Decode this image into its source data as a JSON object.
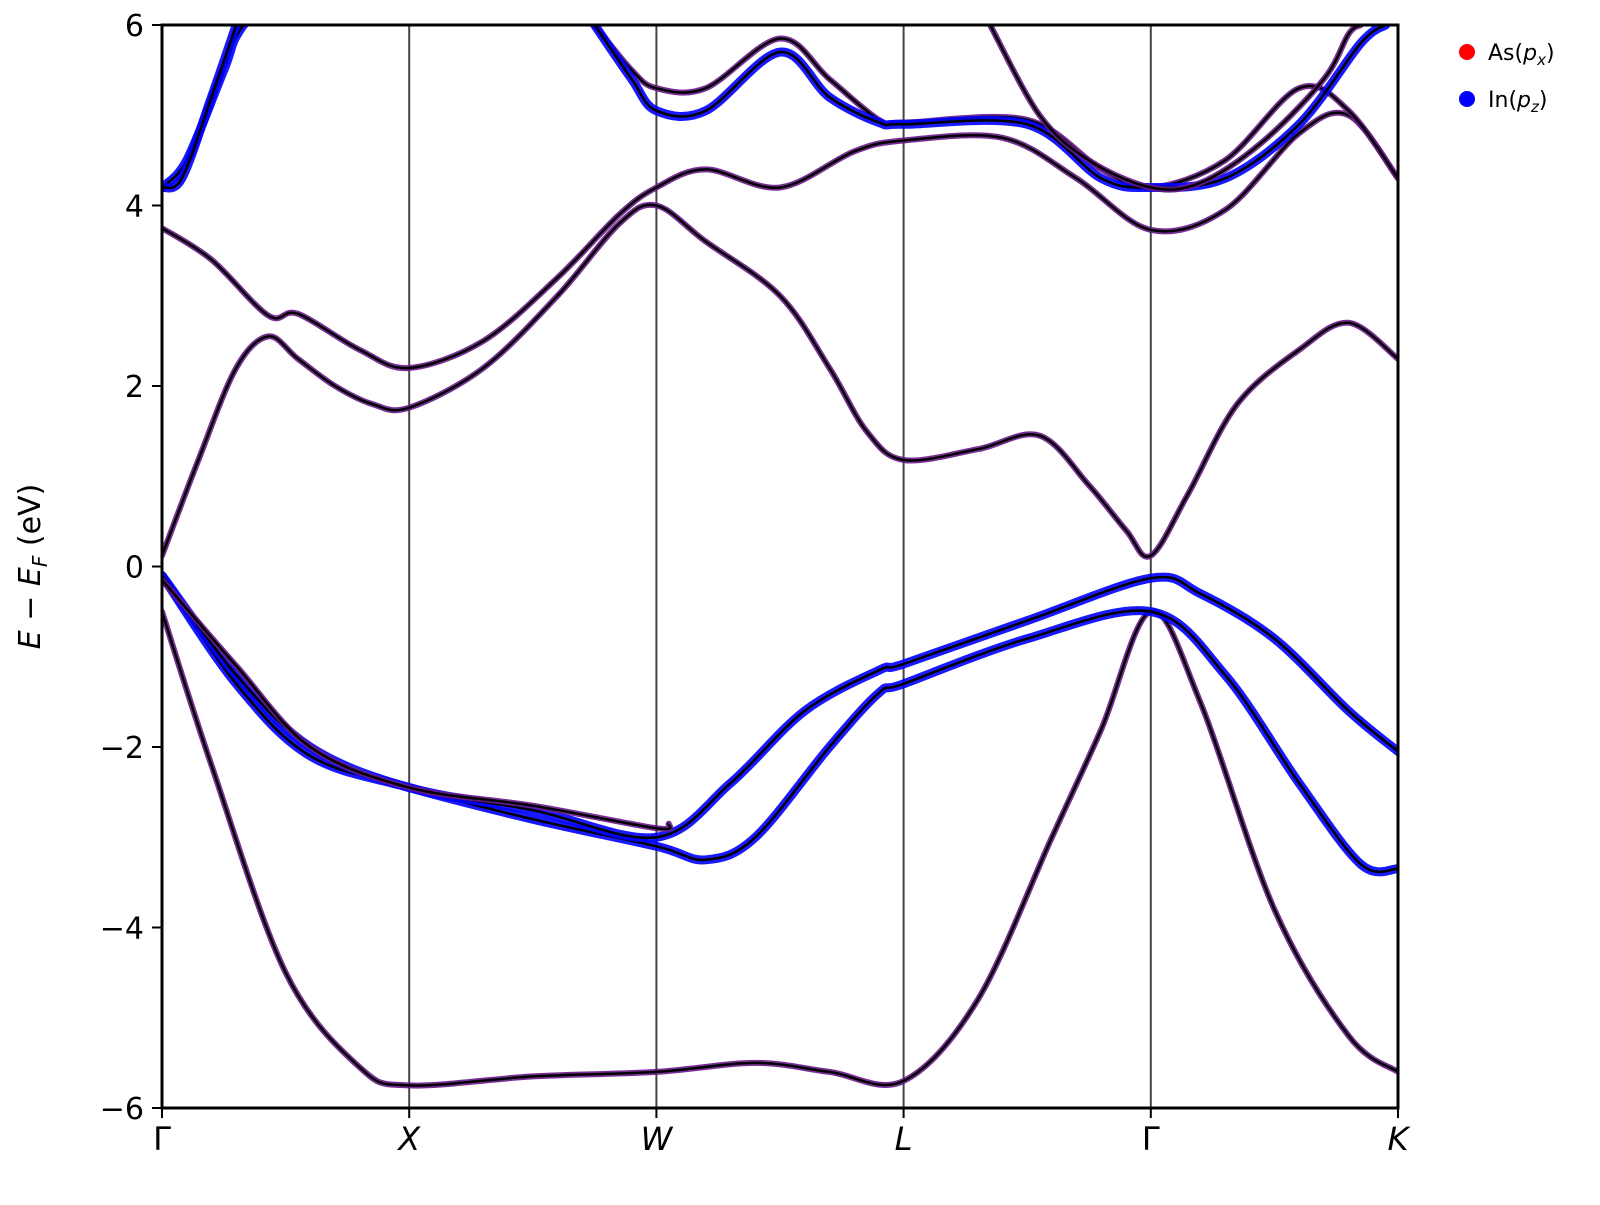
{
  "chart_data": {
    "type": "line",
    "title": "",
    "xlabel": "",
    "ylabel": "E − E_F (eV)",
    "ylabel_parts": {
      "main": "E − E",
      "sub": "F",
      "unit": " (eV)"
    },
    "ylim": [
      -6,
      6
    ],
    "yticks": [
      -6,
      -4,
      -2,
      0,
      2,
      4,
      6
    ],
    "ytick_labels": [
      "−6",
      "−4",
      "−2",
      "0",
      "2",
      "4",
      "6"
    ],
    "kpath": [
      {
        "label": "Γ",
        "x": 0,
        "italic": false
      },
      {
        "label": "X",
        "x": 1,
        "italic": true
      },
      {
        "label": "W",
        "x": 2,
        "italic": true
      },
      {
        "label": "L",
        "x": 3,
        "italic": true
      },
      {
        "label": "Γ",
        "x": 4,
        "italic": false
      },
      {
        "label": "K",
        "x": 5,
        "italic": true
      }
    ],
    "xlim": [
      0,
      5
    ],
    "grid": "vertical lines at high-symmetry points",
    "legend_position": "upper right, outside plot",
    "legend": [
      {
        "name": "As",
        "sub": "x",
        "color": "#ff0000"
      },
      {
        "name": "In",
        "sub": "z",
        "color": "#0000ff"
      }
    ],
    "colors": {
      "band": "#000000",
      "as_px": "#ff0000",
      "in_pz": "#0000ff",
      "mixed": "#6a1a8a",
      "kline": "#444444"
    },
    "series": [
      {
        "name": "band 1",
        "projection": "mixed",
        "points": [
          [
            0,
            -0.5
          ],
          [
            0.2,
            -2.2
          ],
          [
            0.5,
            -4.5
          ],
          [
            0.8,
            -5.55
          ],
          [
            1,
            -5.75
          ],
          [
            1.5,
            -5.65
          ],
          [
            2,
            -5.6
          ],
          [
            2.4,
            -5.5
          ],
          [
            2.7,
            -5.6
          ],
          [
            3,
            -5.7
          ],
          [
            3.3,
            -4.8
          ],
          [
            3.6,
            -3.0
          ],
          [
            3.8,
            -1.8
          ],
          [
            4,
            -0.5
          ],
          [
            4.2,
            -1.5
          ],
          [
            4.5,
            -3.8
          ],
          [
            4.8,
            -5.2
          ],
          [
            5,
            -5.6
          ]
        ]
      },
      {
        "name": "band 2",
        "projection": "in",
        "points": [
          [
            0,
            -0.1
          ],
          [
            0.3,
            -1.3
          ],
          [
            0.6,
            -2.1
          ],
          [
            1,
            -2.45
          ],
          [
            1.5,
            -2.8
          ],
          [
            2,
            -3.1
          ],
          [
            2.2,
            -3.25
          ],
          [
            2.4,
            -3.0
          ],
          [
            2.7,
            -2.0
          ],
          [
            2.9,
            -1.4
          ],
          [
            3,
            -1.3
          ],
          [
            3.5,
            -0.8
          ],
          [
            4,
            -0.5
          ],
          [
            4.3,
            -1.2
          ],
          [
            4.6,
            -2.4
          ],
          [
            4.85,
            -3.3
          ],
          [
            5,
            -3.35
          ]
        ]
      },
      {
        "name": "band 3",
        "projection": "in",
        "points": [
          [
            0,
            -0.1
          ],
          [
            0.3,
            -1.2
          ],
          [
            0.6,
            -2.0
          ],
          [
            1,
            -2.45
          ],
          [
            1.5,
            -2.7
          ],
          [
            2,
            -3.0
          ],
          [
            2.3,
            -2.4
          ],
          [
            2.6,
            -1.6
          ],
          [
            2.9,
            -1.15
          ],
          [
            3,
            -1.08
          ],
          [
            3.5,
            -0.6
          ],
          [
            4,
            -0.13
          ],
          [
            4.2,
            -0.3
          ],
          [
            4.5,
            -0.8
          ],
          [
            4.8,
            -1.6
          ],
          [
            5,
            -2.05
          ]
        ]
      },
      {
        "name": "band 4",
        "projection": "mixed",
        "points": [
          [
            0,
            -0.15
          ],
          [
            0.3,
            -1.1
          ],
          [
            0.6,
            -2.0
          ],
          [
            1,
            -2.45
          ],
          [
            1.5,
            -2.65
          ],
          [
            2,
            -2.9
          ],
          [
            2.05,
            -2.85
          ]
        ]
      },
      {
        "name": "band 5",
        "projection": "mixed",
        "points": [
          [
            0,
            0.12
          ],
          [
            0.15,
            1.2
          ],
          [
            0.3,
            2.2
          ],
          [
            0.43,
            2.55
          ],
          [
            0.55,
            2.3
          ],
          [
            0.7,
            2.0
          ],
          [
            0.85,
            1.8
          ],
          [
            1,
            1.76
          ],
          [
            1.3,
            2.2
          ],
          [
            1.6,
            3.0
          ],
          [
            1.85,
            3.8
          ],
          [
            2,
            4.0
          ],
          [
            2.2,
            3.6
          ],
          [
            2.5,
            3.0
          ],
          [
            2.7,
            2.2
          ],
          [
            2.85,
            1.5
          ],
          [
            3,
            1.18
          ],
          [
            3.3,
            1.3
          ],
          [
            3.55,
            1.45
          ],
          [
            3.75,
            0.9
          ],
          [
            3.9,
            0.4
          ],
          [
            4,
            0.12
          ],
          [
            4.15,
            0.8
          ],
          [
            4.35,
            1.8
          ],
          [
            4.6,
            2.4
          ],
          [
            4.8,
            2.7
          ],
          [
            5,
            2.3
          ]
        ]
      },
      {
        "name": "band 6",
        "projection": "mixed",
        "points": [
          [
            0,
            3.75
          ],
          [
            0.2,
            3.4
          ],
          [
            0.43,
            2.78
          ],
          [
            0.55,
            2.8
          ],
          [
            0.8,
            2.4
          ],
          [
            1,
            2.2
          ],
          [
            1.3,
            2.5
          ],
          [
            1.6,
            3.2
          ],
          [
            1.85,
            3.9
          ],
          [
            2,
            4.2
          ],
          [
            2.2,
            4.4
          ],
          [
            2.5,
            4.2
          ],
          [
            2.8,
            4.6
          ],
          [
            3,
            4.72
          ],
          [
            3.4,
            4.75
          ],
          [
            3.7,
            4.3
          ],
          [
            4,
            3.73
          ],
          [
            4.3,
            3.95
          ],
          [
            4.6,
            4.8
          ],
          [
            4.8,
            5.0
          ],
          [
            5,
            4.3
          ]
        ]
      },
      {
        "name": "band 7",
        "projection": "in",
        "points": [
          [
            0,
            4.2
          ],
          [
            0.1,
            4.5
          ],
          [
            0.25,
            5.5
          ],
          [
            0.33,
            6.0
          ],
          [
            0.6,
            6.8
          ]
        ]
      },
      {
        "name": "band 8",
        "projection": "in",
        "points": [
          [
            0,
            4.2
          ],
          [
            0.08,
            4.3
          ],
          [
            0.2,
            5.2
          ],
          [
            0.3,
            6.0
          ]
        ]
      },
      {
        "name": "band 9",
        "projection": "mixed",
        "points": [
          [
            1.75,
            6.0
          ],
          [
            1.9,
            5.5
          ],
          [
            2,
            5.3
          ],
          [
            2.2,
            5.3
          ],
          [
            2.5,
            5.85
          ],
          [
            2.7,
            5.4
          ],
          [
            2.9,
            4.95
          ],
          [
            3,
            4.92
          ],
          [
            3.5,
            4.95
          ],
          [
            3.8,
            4.4
          ],
          [
            4,
            4.2
          ],
          [
            4.3,
            4.5
          ],
          [
            4.6,
            5.3
          ],
          [
            4.8,
            5.05
          ],
          [
            5,
            4.3
          ]
        ]
      },
      {
        "name": "band 10",
        "projection": "in",
        "points": [
          [
            1.75,
            6.0
          ],
          [
            1.9,
            5.4
          ],
          [
            2,
            5.05
          ],
          [
            2.2,
            5.05
          ],
          [
            2.5,
            5.7
          ],
          [
            2.7,
            5.2
          ],
          [
            2.9,
            4.92
          ],
          [
            3,
            4.9
          ],
          [
            3.5,
            4.9
          ],
          [
            3.8,
            4.3
          ],
          [
            4,
            4.2
          ],
          [
            4.3,
            4.3
          ],
          [
            4.6,
            4.9
          ],
          [
            4.85,
            5.8
          ],
          [
            4.95,
            6.0
          ]
        ]
      },
      {
        "name": "band 11",
        "projection": "mixed",
        "points": [
          [
            3.35,
            6.0
          ],
          [
            3.55,
            5.0
          ],
          [
            3.75,
            4.5
          ],
          [
            4,
            4.2
          ],
          [
            4.2,
            4.25
          ],
          [
            4.45,
            4.7
          ],
          [
            4.7,
            5.4
          ],
          [
            4.8,
            5.9
          ],
          [
            4.85,
            6.0
          ]
        ]
      }
    ]
  }
}
